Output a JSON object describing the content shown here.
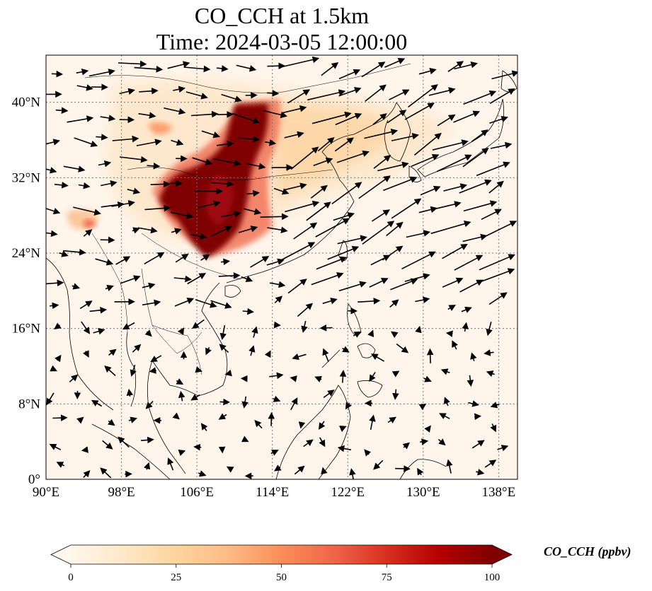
{
  "title": {
    "line1": "CO_CCH at 1.5km",
    "line2": "Time: 2024-03-05 12:00:00"
  },
  "map": {
    "lon_ticks": [
      "90°E",
      "98°E",
      "106°E",
      "114°E",
      "122°E",
      "130°E",
      "138°E"
    ],
    "lat_ticks": [
      "0°",
      "8°N",
      "16°N",
      "24°N",
      "32°N",
      "40°N"
    ],
    "lon_values": [
      90,
      98,
      106,
      114,
      122,
      130,
      138
    ],
    "lat_values": [
      0,
      8,
      16,
      24,
      32,
      40
    ],
    "extent": {
      "lon_min": 90,
      "lon_max": 140,
      "lat_min": 0,
      "lat_max": 45
    },
    "gridlines": true
  },
  "colorbar": {
    "label": "CO_CCH (ppbv)",
    "ticks": [
      "0",
      "25",
      "50",
      "75",
      "100"
    ],
    "tick_values": [
      0,
      25,
      50,
      75,
      100
    ],
    "min": 0,
    "max": 100,
    "colormap": [
      "#fff7ec",
      "#fee8c8",
      "#fdd49e",
      "#fdbb84",
      "#fc8d59",
      "#ef6548",
      "#d7301f",
      "#b30000",
      "#7f0000"
    ]
  },
  "colors": {
    "background": "#fff5eb",
    "plume_high": "#7f0000",
    "plume_mid": "#d7301f",
    "plume_low": "#fdd49e",
    "coast": "#000000"
  }
}
